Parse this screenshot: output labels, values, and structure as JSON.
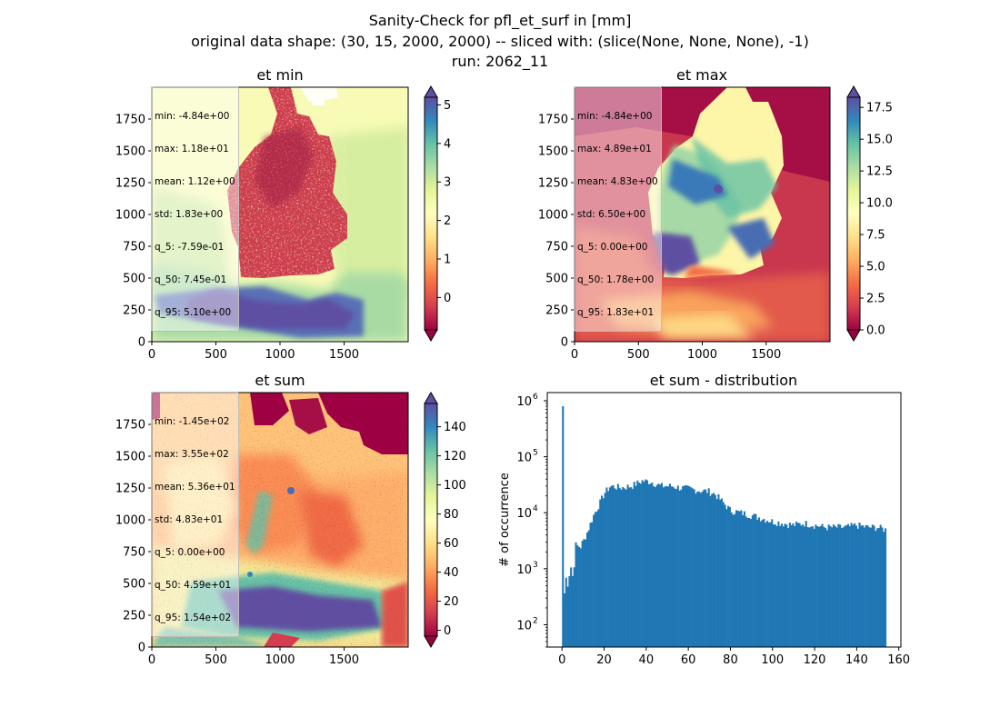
{
  "figure": {
    "title_lines": [
      "Sanity-Check for pfl_et_surf in [mm]",
      "original data shape: (30, 15, 2000, 2000) -- sliced with: (slice(None, None, None), -1)",
      "run: 2062_11"
    ]
  },
  "chart_data": [
    {
      "type": "heatmap",
      "title": "et min",
      "xticks": [
        "0",
        "500",
        "1000",
        "1500"
      ],
      "yticks": [
        "0",
        "250",
        "500",
        "750",
        "1000",
        "1250",
        "1500",
        "1750"
      ],
      "xlim": [
        0,
        2000
      ],
      "ylim": [
        0,
        2000
      ],
      "colormap": "Spectral",
      "colorbar": {
        "range": [
          -0.84,
          5.2
        ],
        "ticks": [
          "0",
          "1",
          "2",
          "3",
          "4",
          "5"
        ],
        "tick_values": [
          0,
          1,
          2,
          3,
          4,
          5
        ],
        "extend": "both"
      },
      "stats_box": [
        "min: -4.84e+00",
        "max: 1.18e+01",
        "mean: 1.12e+00",
        "std: 1.83e+00",
        "q_5: -7.59e-01",
        "q_50: 7.45e-01",
        "q_95: 5.10e+00"
      ]
    },
    {
      "type": "heatmap",
      "title": "et max",
      "xticks": [
        "0",
        "500",
        "1000",
        "1500"
      ],
      "yticks": [
        "0",
        "250",
        "500",
        "750",
        "1000",
        "1250",
        "1500",
        "1750"
      ],
      "xlim": [
        0,
        2000
      ],
      "ylim": [
        0,
        2000
      ],
      "colormap": "Spectral",
      "colorbar": {
        "range": [
          0,
          18.3
        ],
        "ticks": [
          "0.0",
          "2.5",
          "5.0",
          "7.5",
          "10.0",
          "12.5",
          "15.0",
          "17.5"
        ],
        "tick_values": [
          0,
          2.5,
          5,
          7.5,
          10,
          12.5,
          15,
          17.5
        ],
        "extend": "both"
      },
      "stats_box": [
        "min: -4.84e+00",
        "max: 4.89e+01",
        "mean: 4.83e+00",
        "std: 6.50e+00",
        "q_5: 0.00e+00",
        "q_50: 1.78e+00",
        "q_95: 1.83e+01"
      ]
    },
    {
      "type": "heatmap",
      "title": "et sum",
      "xticks": [
        "0",
        "500",
        "1000",
        "1500"
      ],
      "yticks": [
        "0",
        "250",
        "500",
        "750",
        "1000",
        "1250",
        "1500",
        "1750"
      ],
      "xlim": [
        0,
        2000
      ],
      "ylim": [
        0,
        2000
      ],
      "colormap": "Spectral",
      "colorbar": {
        "range": [
          -4,
          156
        ],
        "ticks": [
          "0",
          "20",
          "40",
          "60",
          "80",
          "100",
          "120",
          "140"
        ],
        "tick_values": [
          0,
          20,
          40,
          60,
          80,
          100,
          120,
          140
        ],
        "extend": "both"
      },
      "stats_box": [
        "min: -1.45e+02",
        "max: 3.55e+02",
        "mean: 5.36e+01",
        "std: 4.83e+01",
        "q_5: 0.00e+00",
        "q_50: 4.59e+01",
        "q_95: 1.54e+02"
      ]
    },
    {
      "type": "bar",
      "title": "et sum - distribution",
      "ylabel": "# of occurrence",
      "xlabel": "",
      "yscale": "log",
      "xlim": [
        -7,
        161
      ],
      "ylim": [
        40,
        1400000
      ],
      "xticks": [
        "0",
        "20",
        "40",
        "60",
        "80",
        "100",
        "120",
        "140",
        "160"
      ],
      "xtick_values": [
        0,
        20,
        40,
        60,
        80,
        100,
        120,
        140,
        160
      ],
      "yticks": [
        "10",
        "10",
        "10",
        "10",
        "10"
      ],
      "ytick_exponents": [
        "2",
        "3",
        "4",
        "5",
        "6"
      ],
      "ytick_values": [
        100,
        1000,
        10000,
        100000,
        1000000
      ],
      "bar_color": "#1f77b4",
      "bin_width": 0.77,
      "profile": [
        [
          0,
          800000
        ],
        [
          0.8,
          200
        ],
        [
          1.5,
          600
        ],
        [
          3,
          700
        ],
        [
          4,
          1200
        ],
        [
          5,
          700
        ],
        [
          6,
          2000
        ],
        [
          8,
          2500
        ],
        [
          10,
          3000
        ],
        [
          12,
          4500
        ],
        [
          15,
          9000
        ],
        [
          18,
          15000
        ],
        [
          20,
          22000
        ],
        [
          23,
          30000
        ],
        [
          28,
          28000
        ],
        [
          33,
          30000
        ],
        [
          38,
          37000
        ],
        [
          42,
          36000
        ],
        [
          47,
          30000
        ],
        [
          52,
          30000
        ],
        [
          56,
          28000
        ],
        [
          60,
          27000
        ],
        [
          65,
          25000
        ],
        [
          70,
          24000
        ],
        [
          73,
          21000
        ],
        [
          76,
          16000
        ],
        [
          80,
          11000
        ],
        [
          85,
          10000
        ],
        [
          90,
          9000
        ],
        [
          95,
          8000
        ],
        [
          100,
          7000
        ],
        [
          105,
          6500
        ],
        [
          110,
          6000
        ],
        [
          115,
          6500
        ],
        [
          120,
          6000
        ],
        [
          125,
          5500
        ],
        [
          130,
          5500
        ],
        [
          135,
          5500
        ],
        [
          140,
          6000
        ],
        [
          145,
          5500
        ],
        [
          150,
          5500
        ],
        [
          153.5,
          5000
        ]
      ]
    }
  ]
}
